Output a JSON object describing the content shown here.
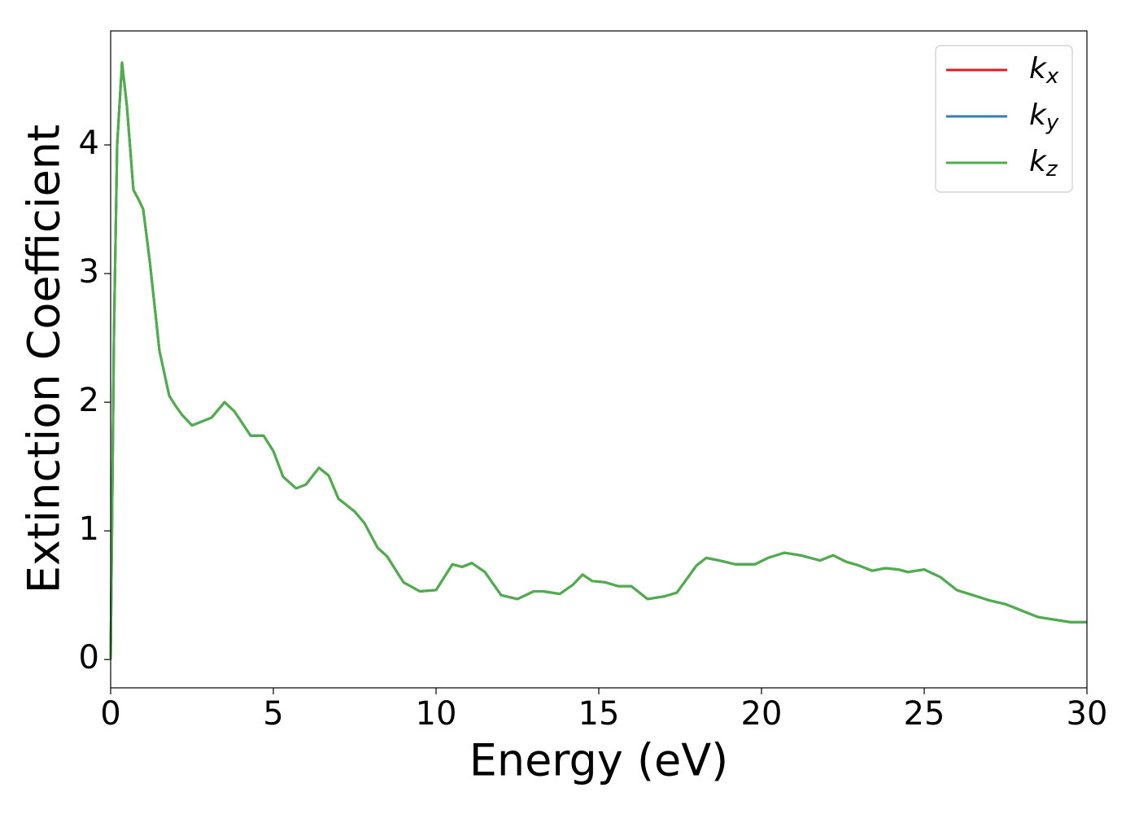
{
  "chart_data": {
    "type": "line",
    "xlabel": "Energy (eV)",
    "ylabel": "Extinction Coefficient",
    "x": [
      0,
      0.1,
      0.2,
      0.35,
      0.5,
      0.7,
      0.85,
      1.0,
      1.2,
      1.5,
      1.8,
      2.0,
      2.2,
      2.5,
      2.8,
      3.1,
      3.5,
      3.8,
      4.3,
      4.7,
      5.0,
      5.3,
      5.7,
      6.0,
      6.4,
      6.7,
      7.0,
      7.5,
      7.8,
      8.2,
      8.5,
      9.0,
      9.5,
      10.0,
      10.5,
      10.8,
      11.1,
      11.5,
      12.0,
      12.5,
      13.0,
      13.3,
      13.8,
      14.2,
      14.5,
      14.8,
      15.2,
      15.6,
      16.0,
      16.5,
      17.0,
      17.4,
      18.0,
      18.3,
      18.7,
      19.2,
      19.8,
      20.2,
      20.7,
      21.2,
      21.8,
      22.2,
      22.6,
      23.0,
      23.4,
      23.8,
      24.2,
      24.5,
      25.0,
      25.5,
      26.0,
      26.5,
      27.0,
      27.5,
      28.0,
      28.5,
      29.0,
      29.5,
      30.0
    ],
    "series": [
      {
        "name": "kx",
        "color": "#e41a1c",
        "values": [
          0,
          2.5,
          4.0,
          4.64,
          4.3,
          3.65,
          3.58,
          3.5,
          3.1,
          2.4,
          2.05,
          1.97,
          1.9,
          1.82,
          1.85,
          1.88,
          2.0,
          1.93,
          1.74,
          1.74,
          1.62,
          1.42,
          1.33,
          1.36,
          1.49,
          1.43,
          1.25,
          1.15,
          1.06,
          0.87,
          0.8,
          0.6,
          0.53,
          0.54,
          0.74,
          0.72,
          0.75,
          0.68,
          0.5,
          0.47,
          0.53,
          0.53,
          0.51,
          0.58,
          0.66,
          0.61,
          0.6,
          0.57,
          0.57,
          0.47,
          0.49,
          0.52,
          0.73,
          0.79,
          0.77,
          0.74,
          0.74,
          0.79,
          0.83,
          0.81,
          0.77,
          0.81,
          0.76,
          0.73,
          0.69,
          0.71,
          0.7,
          0.68,
          0.7,
          0.64,
          0.54,
          0.5,
          0.46,
          0.43,
          0.38,
          0.33,
          0.31,
          0.29,
          0.29
        ]
      },
      {
        "name": "ky",
        "color": "#377eb8",
        "values": [
          0,
          2.5,
          4.0,
          4.64,
          4.3,
          3.65,
          3.58,
          3.5,
          3.1,
          2.4,
          2.05,
          1.97,
          1.9,
          1.82,
          1.85,
          1.88,
          2.0,
          1.93,
          1.74,
          1.74,
          1.62,
          1.42,
          1.33,
          1.36,
          1.49,
          1.43,
          1.25,
          1.15,
          1.06,
          0.87,
          0.8,
          0.6,
          0.53,
          0.54,
          0.74,
          0.72,
          0.75,
          0.68,
          0.5,
          0.47,
          0.53,
          0.53,
          0.51,
          0.58,
          0.66,
          0.61,
          0.6,
          0.57,
          0.57,
          0.47,
          0.49,
          0.52,
          0.73,
          0.79,
          0.77,
          0.74,
          0.74,
          0.79,
          0.83,
          0.81,
          0.77,
          0.81,
          0.76,
          0.73,
          0.69,
          0.71,
          0.7,
          0.68,
          0.7,
          0.64,
          0.54,
          0.5,
          0.46,
          0.43,
          0.38,
          0.33,
          0.31,
          0.29,
          0.29
        ]
      },
      {
        "name": "kz",
        "color": "#4daf4a",
        "values": [
          0,
          2.5,
          4.0,
          4.64,
          4.3,
          3.65,
          3.58,
          3.5,
          3.1,
          2.4,
          2.05,
          1.97,
          1.9,
          1.82,
          1.85,
          1.88,
          2.0,
          1.93,
          1.74,
          1.74,
          1.62,
          1.42,
          1.33,
          1.36,
          1.49,
          1.43,
          1.25,
          1.15,
          1.06,
          0.87,
          0.8,
          0.6,
          0.53,
          0.54,
          0.74,
          0.72,
          0.75,
          0.68,
          0.5,
          0.47,
          0.53,
          0.53,
          0.51,
          0.58,
          0.66,
          0.61,
          0.6,
          0.57,
          0.57,
          0.47,
          0.49,
          0.52,
          0.73,
          0.79,
          0.77,
          0.74,
          0.74,
          0.79,
          0.83,
          0.81,
          0.77,
          0.81,
          0.76,
          0.73,
          0.69,
          0.71,
          0.7,
          0.68,
          0.7,
          0.64,
          0.54,
          0.5,
          0.46,
          0.43,
          0.38,
          0.33,
          0.31,
          0.29,
          0.29
        ]
      }
    ],
    "xlim": [
      0,
      30
    ],
    "xticks": [
      0,
      5,
      10,
      15,
      20,
      25,
      30
    ],
    "ylim": [
      -0.22,
      4.886
    ],
    "yticks": [
      0,
      1,
      2,
      3,
      4
    ],
    "grid": false,
    "legend": "upper right"
  }
}
